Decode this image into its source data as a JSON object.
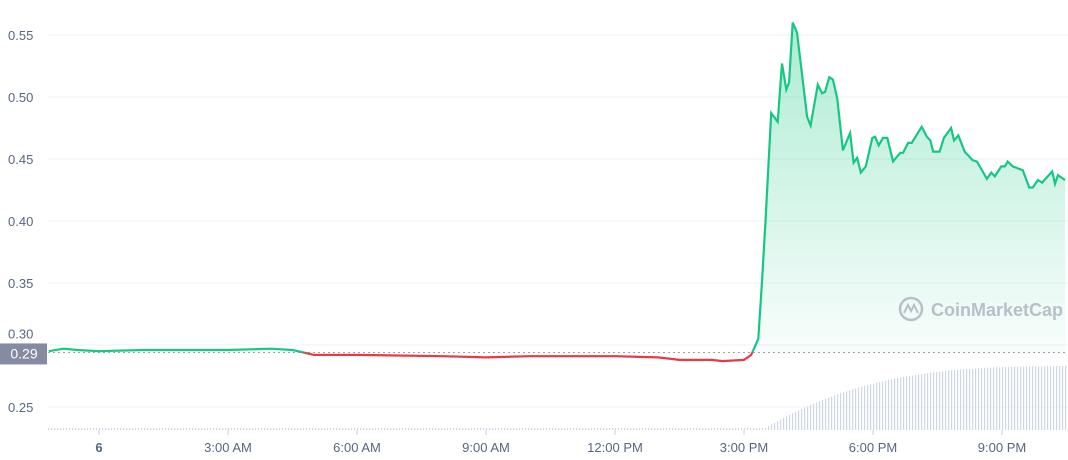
{
  "chart_data": {
    "type": "area",
    "title": "",
    "xlabel": "",
    "ylabel": "",
    "ylim": [
      0.23,
      0.57
    ],
    "yticks": [
      "0.25",
      "0.30",
      "0.35",
      "0.40",
      "0.45",
      "0.50",
      "0.55"
    ],
    "xticks": [
      "6",
      "3:00 AM",
      "6:00 AM",
      "9:00 AM",
      "12:00 PM",
      "3:00 PM",
      "6:00 PM",
      "9:00 PM"
    ],
    "grid": "horizontal",
    "reference_price": 0.294,
    "reference_label": "0.29",
    "colors": {
      "up": "#16c784",
      "down": "#ea3943",
      "grid": "#eff2f5",
      "label_bg": "#858ca2",
      "volume": "#cfd6e4"
    },
    "watermark": "CoinMarketCap",
    "series": [
      {
        "points": [
          [
            "5 22:50",
            0.295
          ],
          [
            "5 23:10",
            0.297
          ],
          [
            "5 23:30",
            0.296
          ],
          [
            "6 00:00",
            0.295
          ],
          [
            "6 01:00",
            0.296
          ],
          [
            "6 02:00",
            0.296
          ],
          [
            "6 03:00",
            0.296
          ],
          [
            "6 04:00",
            0.297
          ],
          [
            "6 04:30",
            0.296
          ],
          [
            "6 04:45",
            0.294
          ],
          [
            "6 05:00",
            0.292
          ],
          [
            "6 06:00",
            0.292
          ],
          [
            "6 08:00",
            0.291
          ],
          [
            "6 09:00",
            0.29
          ],
          [
            "6 10:00",
            0.291
          ],
          [
            "6 12:00",
            0.291
          ],
          [
            "6 13:00",
            0.29
          ],
          [
            "6 13:30",
            0.288
          ],
          [
            "6 14:15",
            0.288
          ],
          [
            "6 14:30",
            0.287
          ],
          [
            "6 15:00",
            0.288
          ],
          [
            "6 15:10",
            0.292
          ],
          [
            "6 15:20",
            0.305
          ],
          [
            "6 15:25",
            0.35
          ],
          [
            "6 15:30",
            0.4
          ],
          [
            "6 15:38",
            0.487
          ],
          [
            "6 15:47",
            0.48
          ],
          [
            "6 15:53",
            0.527
          ],
          [
            "6 15:59",
            0.506
          ],
          [
            "6 16:03",
            0.512
          ],
          [
            "6 16:08",
            0.56
          ],
          [
            "6 16:14",
            0.552
          ],
          [
            "6 16:28",
            0.484
          ],
          [
            "6 16:33",
            0.477
          ],
          [
            "6 16:43",
            0.51
          ],
          [
            "6 16:49",
            0.503
          ],
          [
            "6 16:53",
            0.504
          ],
          [
            "6 16:59",
            0.516
          ],
          [
            "6 17:04",
            0.514
          ],
          [
            "6 17:10",
            0.499
          ],
          [
            "6 17:18",
            0.457
          ],
          [
            "6 17:28",
            0.471
          ],
          [
            "6 17:33",
            0.447
          ],
          [
            "6 17:38",
            0.451
          ],
          [
            "6 17:43",
            0.439
          ],
          [
            "6 17:50",
            0.444
          ],
          [
            "6 17:59",
            0.467
          ],
          [
            "6 18:03",
            0.468
          ],
          [
            "6 18:08",
            0.461
          ],
          [
            "6 18:14",
            0.467
          ],
          [
            "6 18:20",
            0.467
          ],
          [
            "6 18:28",
            0.448
          ],
          [
            "6 18:38",
            0.455
          ],
          [
            "6 18:42",
            0.455
          ],
          [
            "6 18:49",
            0.463
          ],
          [
            "6 18:54",
            0.463
          ],
          [
            "6 19:08",
            0.476
          ],
          [
            "6 19:15",
            0.468
          ],
          [
            "6 19:20",
            0.465
          ],
          [
            "6 19:24",
            0.456
          ],
          [
            "6 19:33",
            0.456
          ],
          [
            "6 19:39",
            0.467
          ],
          [
            "6 19:49",
            0.475
          ],
          [
            "6 19:53",
            0.465
          ],
          [
            "6 19:59",
            0.469
          ],
          [
            "6 20:08",
            0.456
          ],
          [
            "6 20:19",
            0.449
          ],
          [
            "6 20:25",
            0.448
          ],
          [
            "6 20:39",
            0.434
          ],
          [
            "6 20:45",
            0.439
          ],
          [
            "6 20:50",
            0.436
          ],
          [
            "6 20:59",
            0.444
          ],
          [
            "6 21:04",
            0.444
          ],
          [
            "6 21:08",
            0.448
          ],
          [
            "6 21:15",
            0.444
          ],
          [
            "6 21:29",
            0.441
          ],
          [
            "6 21:38",
            0.427
          ],
          [
            "6 21:43",
            0.427
          ],
          [
            "6 21:50",
            0.433
          ],
          [
            "6 21:56",
            0.431
          ],
          [
            "6 22:10",
            0.44
          ],
          [
            "6 22:14",
            0.43
          ],
          [
            "6 22:18",
            0.437
          ],
          [
            "6 22:28",
            0.433
          ]
        ]
      }
    ]
  }
}
